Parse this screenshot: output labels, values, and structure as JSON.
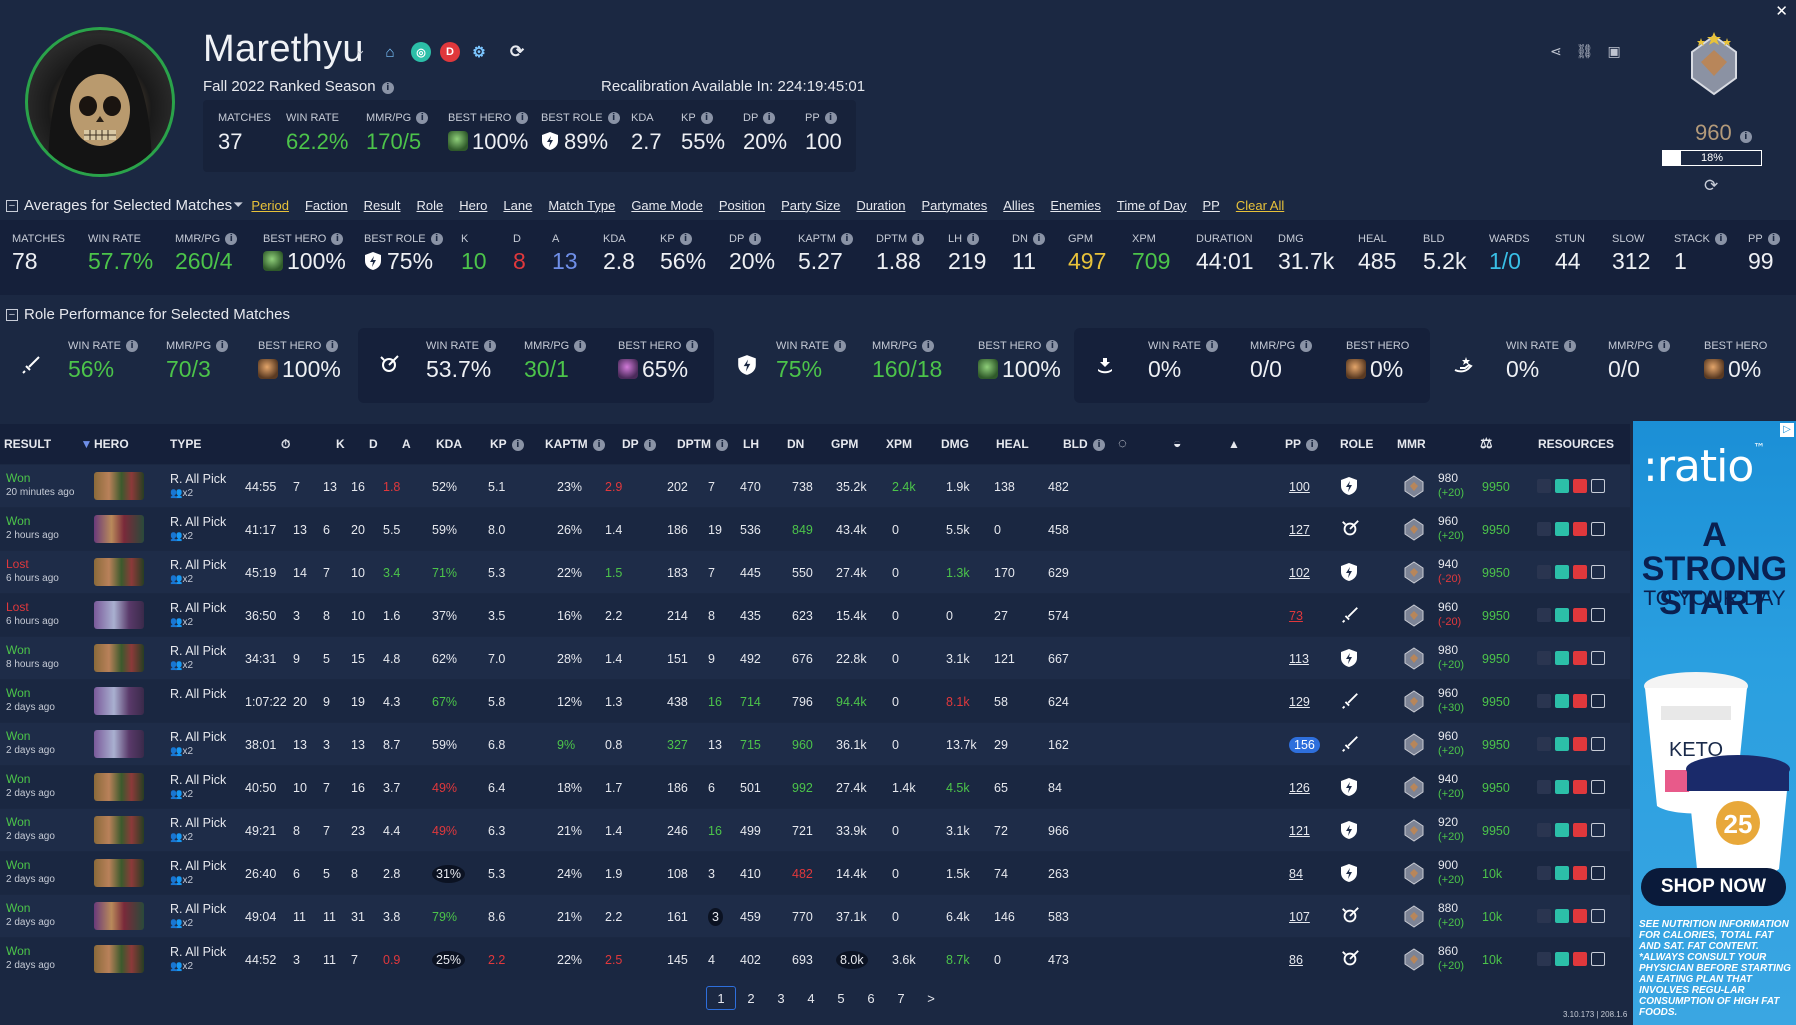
{
  "window": {
    "close_glyph": "✕"
  },
  "profile": {
    "name": "Marethyu",
    "season": "Fall 2022 Ranked Season",
    "recalibration": "Recalibration Available In: 224:19:45:01",
    "badge_d": "D",
    "summary": [
      {
        "label": "MATCHES",
        "value": "37"
      },
      {
        "label": "WIN RATE",
        "value": "62.2%"
      },
      {
        "label": "MMR/PG",
        "value": "170/5"
      },
      {
        "label": "BEST HERO",
        "value": "100%"
      },
      {
        "label": "BEST ROLE",
        "value": "89%"
      },
      {
        "label": "KDA",
        "value": "2.7"
      },
      {
        "label": "KP",
        "value": "55%"
      },
      {
        "label": "DP",
        "value": "20%"
      },
      {
        "label": "PP",
        "value": "100"
      }
    ],
    "rank": {
      "value": "960",
      "progress_label": "18%",
      "progress": 0.18
    }
  },
  "averages": {
    "title": "Averages for Selected Matches",
    "filters": [
      "Period",
      "Faction",
      "Result",
      "Role",
      "Hero",
      "Lane",
      "Match Type",
      "Game Mode",
      "Position",
      "Party Size",
      "Duration",
      "Partymates",
      "Allies",
      "Enemies",
      "Time of Day",
      "PP"
    ],
    "clear_all": "Clear All",
    "stats": [
      {
        "label": "MATCHES",
        "value": "78"
      },
      {
        "label": "WIN RATE",
        "value": "57.7%"
      },
      {
        "label": "MMR/PG",
        "value": "260/4"
      },
      {
        "label": "BEST HERO",
        "value": "100%"
      },
      {
        "label": "BEST ROLE",
        "value": "75%"
      },
      {
        "label": "K",
        "value": "10"
      },
      {
        "label": "D",
        "value": "8"
      },
      {
        "label": "A",
        "value": "13"
      },
      {
        "label": "KDA",
        "value": "2.8"
      },
      {
        "label": "KP",
        "value": "56%"
      },
      {
        "label": "DP",
        "value": "20%"
      },
      {
        "label": "KAPTM",
        "value": "5.27"
      },
      {
        "label": "DPTM",
        "value": "1.88"
      },
      {
        "label": "LH",
        "value": "219"
      },
      {
        "label": "DN",
        "value": "11"
      },
      {
        "label": "GPM",
        "value": "497"
      },
      {
        "label": "XPM",
        "value": "709"
      },
      {
        "label": "DURATION",
        "value": "44:01"
      },
      {
        "label": "DMG",
        "value": "31.7k"
      },
      {
        "label": "HEAL",
        "value": "485"
      },
      {
        "label": "BLD",
        "value": "5.2k"
      },
      {
        "label": "WARDS",
        "value": "1/0"
      },
      {
        "label": "STUN",
        "value": "44"
      },
      {
        "label": "SLOW",
        "value": "312"
      },
      {
        "label": "STACK",
        "value": "1"
      },
      {
        "label": "PP",
        "value": "99"
      }
    ]
  },
  "roles": {
    "title": "Role Performance for Selected Matches",
    "cards": [
      {
        "icon": "sword-icon",
        "win_rate": "56%",
        "mmr": "70/3",
        "best_hero": "100%"
      },
      {
        "icon": "target-icon",
        "win_rate": "53.7%",
        "mmr": "30/1",
        "best_hero": "65%"
      },
      {
        "icon": "shield-icon",
        "win_rate": "75%",
        "mmr": "160/18",
        "best_hero": "100%"
      },
      {
        "icon": "healer-icon",
        "win_rate": "0%",
        "mmr": "0/0",
        "best_hero": "0%"
      },
      {
        "icon": "support-icon",
        "win_rate": "0%",
        "mmr": "0/0",
        "best_hero": "0%"
      }
    ],
    "labels": {
      "win_rate": "WIN RATE",
      "mmr": "MMR/PG",
      "best_hero": "BEST HERO"
    }
  },
  "table": {
    "headers": {
      "result": "RESULT",
      "hero": "HERO",
      "type": "TYPE",
      "k": "K",
      "d": "D",
      "a": "A",
      "kda": "KDA",
      "kp": "KP",
      "kaptm": "KAPTM",
      "dp": "DP",
      "dptm": "DPTM",
      "lh": "LH",
      "dn": "DN",
      "gpm": "GPM",
      "xpm": "XPM",
      "dmg": "DMG",
      "heal": "HEAL",
      "bld": "BLD",
      "pp": "PP",
      "role": "ROLE",
      "mmr": "MMR",
      "resources": "RESOURCES"
    },
    "rows": [
      {
        "result": "Won",
        "ago": "20 minutes ago",
        "type": "R. All Pick",
        "party": "x2",
        "dur": "44:55",
        "k": "7",
        "d": "13",
        "a": "16",
        "kda": "1.8",
        "kp": "52%",
        "kaptm": "5.1",
        "dp": "23%",
        "dptm": "2.9",
        "lh": "202",
        "dn": "7",
        "gpm": "470",
        "xpm": "738",
        "dmg": "35.2k",
        "heal": "2.4k",
        "bld": "1.9k",
        "c1": "138",
        "c2": "482",
        "pp": "100",
        "mmr": "980",
        "delta": "(+20)",
        "res": "9950",
        "role": "shield"
      },
      {
        "result": "Won",
        "ago": "2 hours ago",
        "type": "R. All Pick",
        "party": "x2",
        "dur": "41:17",
        "k": "13",
        "d": "6",
        "a": "20",
        "kda": "5.5",
        "kp": "59%",
        "kaptm": "8.0",
        "dp": "26%",
        "dptm": "1.4",
        "lh": "186",
        "dn": "19",
        "gpm": "536",
        "xpm": "849",
        "dmg": "43.4k",
        "heal": "0",
        "bld": "5.5k",
        "c1": "0",
        "c2": "458",
        "pp": "127",
        "mmr": "960",
        "delta": "(+20)",
        "res": "9950",
        "role": "target"
      },
      {
        "result": "Lost",
        "ago": "6 hours ago",
        "type": "R. All Pick",
        "party": "x2",
        "dur": "45:19",
        "k": "14",
        "d": "7",
        "a": "10",
        "kda": "3.4",
        "kp": "71%",
        "kaptm": "5.3",
        "dp": "22%",
        "dptm": "1.5",
        "lh": "183",
        "dn": "7",
        "gpm": "445",
        "xpm": "550",
        "dmg": "27.4k",
        "heal": "0",
        "bld": "1.3k",
        "c1": "170",
        "c2": "629",
        "pp": "102",
        "mmr": "940",
        "delta": "(-20)",
        "res": "9950",
        "role": "shield"
      },
      {
        "result": "Lost",
        "ago": "6 hours ago",
        "type": "R. All Pick",
        "party": "x2",
        "dur": "36:50",
        "k": "3",
        "d": "8",
        "a": "10",
        "kda": "1.6",
        "kp": "37%",
        "kaptm": "3.5",
        "dp": "16%",
        "dptm": "2.2",
        "lh": "214",
        "dn": "8",
        "gpm": "435",
        "xpm": "623",
        "dmg": "15.4k",
        "heal": "0",
        "bld": "0",
        "c1": "27",
        "c2": "574",
        "pp": "73",
        "mmr": "960",
        "delta": "(-20)",
        "res": "9950",
        "role": "sword"
      },
      {
        "result": "Won",
        "ago": "8 hours ago",
        "type": "R. All Pick",
        "party": "x2",
        "dur": "34:31",
        "k": "9",
        "d": "5",
        "a": "15",
        "kda": "4.8",
        "kp": "62%",
        "kaptm": "7.0",
        "dp": "28%",
        "dptm": "1.4",
        "lh": "151",
        "dn": "9",
        "gpm": "492",
        "xpm": "676",
        "dmg": "22.8k",
        "heal": "0",
        "bld": "3.1k",
        "c1": "121",
        "c2": "667",
        "pp": "113",
        "mmr": "980",
        "delta": "(+20)",
        "res": "9950",
        "role": "shield"
      },
      {
        "result": "Won",
        "ago": "2 days ago",
        "type": "R. All Pick",
        "party": "",
        "dur": "1:07:22",
        "k": "20",
        "d": "9",
        "a": "19",
        "kda": "4.3",
        "kp": "67%",
        "kaptm": "5.8",
        "dp": "12%",
        "dptm": "1.3",
        "lh": "438",
        "dn": "16",
        "gpm": "714",
        "xpm": "796",
        "dmg": "94.4k",
        "heal": "0",
        "bld": "8.1k",
        "c1": "58",
        "c2": "624",
        "pp": "129",
        "mmr": "960",
        "delta": "(+30)",
        "res": "9950",
        "role": "sword"
      },
      {
        "result": "Won",
        "ago": "2 days ago",
        "type": "R. All Pick",
        "party": "x2",
        "dur": "38:01",
        "k": "13",
        "d": "3",
        "a": "13",
        "kda": "8.7",
        "kp": "59%",
        "kaptm": "6.8",
        "dp": "9%",
        "dptm": "0.8",
        "lh": "327",
        "dn": "13",
        "gpm": "715",
        "xpm": "960",
        "dmg": "36.1k",
        "heal": "0",
        "bld": "13.7k",
        "c1": "29",
        "c2": "162",
        "pp": "156",
        "mmr": "960",
        "delta": "(+20)",
        "res": "9950",
        "role": "sword"
      },
      {
        "result": "Won",
        "ago": "2 days ago",
        "type": "R. All Pick",
        "party": "x2",
        "dur": "40:50",
        "k": "10",
        "d": "7",
        "a": "16",
        "kda": "3.7",
        "kp": "49%",
        "kaptm": "6.4",
        "dp": "18%",
        "dptm": "1.7",
        "lh": "186",
        "dn": "6",
        "gpm": "501",
        "xpm": "992",
        "dmg": "27.4k",
        "heal": "1.4k",
        "bld": "4.5k",
        "c1": "65",
        "c2": "84",
        "pp": "126",
        "mmr": "940",
        "delta": "(+20)",
        "res": "9950",
        "role": "shield"
      },
      {
        "result": "Won",
        "ago": "2 days ago",
        "type": "R. All Pick",
        "party": "x2",
        "dur": "49:21",
        "k": "8",
        "d": "7",
        "a": "23",
        "kda": "4.4",
        "kp": "49%",
        "kaptm": "6.3",
        "dp": "21%",
        "dptm": "1.4",
        "lh": "246",
        "dn": "16",
        "gpm": "499",
        "xpm": "721",
        "dmg": "33.9k",
        "heal": "0",
        "bld": "3.1k",
        "c1": "72",
        "c2": "966",
        "pp": "121",
        "mmr": "920",
        "delta": "(+20)",
        "res": "9950",
        "role": "shield"
      },
      {
        "result": "Won",
        "ago": "2 days ago",
        "type": "R. All Pick",
        "party": "x2",
        "dur": "26:40",
        "k": "6",
        "d": "5",
        "a": "8",
        "kda": "2.8",
        "kp": "31%",
        "kaptm": "5.3",
        "dp": "24%",
        "dptm": "1.9",
        "lh": "108",
        "dn": "3",
        "gpm": "410",
        "xpm": "482",
        "dmg": "14.4k",
        "heal": "0",
        "bld": "1.5k",
        "c1": "74",
        "c2": "263",
        "pp": "84",
        "mmr": "900",
        "delta": "(+20)",
        "res": "10k",
        "role": "shield"
      },
      {
        "result": "Won",
        "ago": "2 days ago",
        "type": "R. All Pick",
        "party": "x2",
        "dur": "49:04",
        "k": "11",
        "d": "11",
        "a": "31",
        "kda": "3.8",
        "kp": "79%",
        "kaptm": "8.6",
        "dp": "21%",
        "dptm": "2.2",
        "lh": "161",
        "dn": "3",
        "gpm": "459",
        "xpm": "770",
        "dmg": "37.1k",
        "heal": "0",
        "bld": "6.4k",
        "c1": "146",
        "c2": "583",
        "pp": "107",
        "mmr": "880",
        "delta": "(+20)",
        "res": "10k",
        "role": "target"
      },
      {
        "result": "Won",
        "ago": "2 days ago",
        "type": "R. All Pick",
        "party": "x2",
        "dur": "44:52",
        "k": "3",
        "d": "11",
        "a": "7",
        "kda": "0.9",
        "kp": "25%",
        "kaptm": "2.2",
        "dp": "22%",
        "dptm": "2.5",
        "lh": "145",
        "dn": "4",
        "gpm": "402",
        "xpm": "693",
        "dmg": "8.0k",
        "heal": "3.6k",
        "bld": "8.7k",
        "c1": "0",
        "c2": "473",
        "pp": "86",
        "mmr": "860",
        "delta": "(+20)",
        "res": "10k",
        "role": "target"
      }
    ]
  },
  "pager": {
    "pages": [
      "1",
      "2",
      "3",
      "4",
      "5",
      "6",
      "7"
    ],
    "next": ">"
  },
  "version": "3.10.173 | 208.1.6",
  "ad": {
    "brand": ":ratio",
    "tm": "™",
    "headline_1": "A STRONG START",
    "headline_2": "TO YOUR DAY",
    "cup_1_text": "KETO",
    "cup_2_badge": "25",
    "cta": "SHOP NOW",
    "fine_print": "SEE NUTRITION INFORMATION FOR CALORIES, TOTAL FAT AND SAT. FAT CONTENT. *ALWAYS CONSULT YOUR PHYSICIAN BEFORE STARTING AN EATING PLAN THAT INVOLVES REGU-LAR CONSUMPTION OF HIGH FAT FOODS.",
    "adchoice": "▷"
  },
  "colors": {
    "accent_green": "#4cc44a",
    "accent_red": "#e0383c",
    "accent_gold": "#e8c23a",
    "accent_blue": "#2e6fdc"
  }
}
